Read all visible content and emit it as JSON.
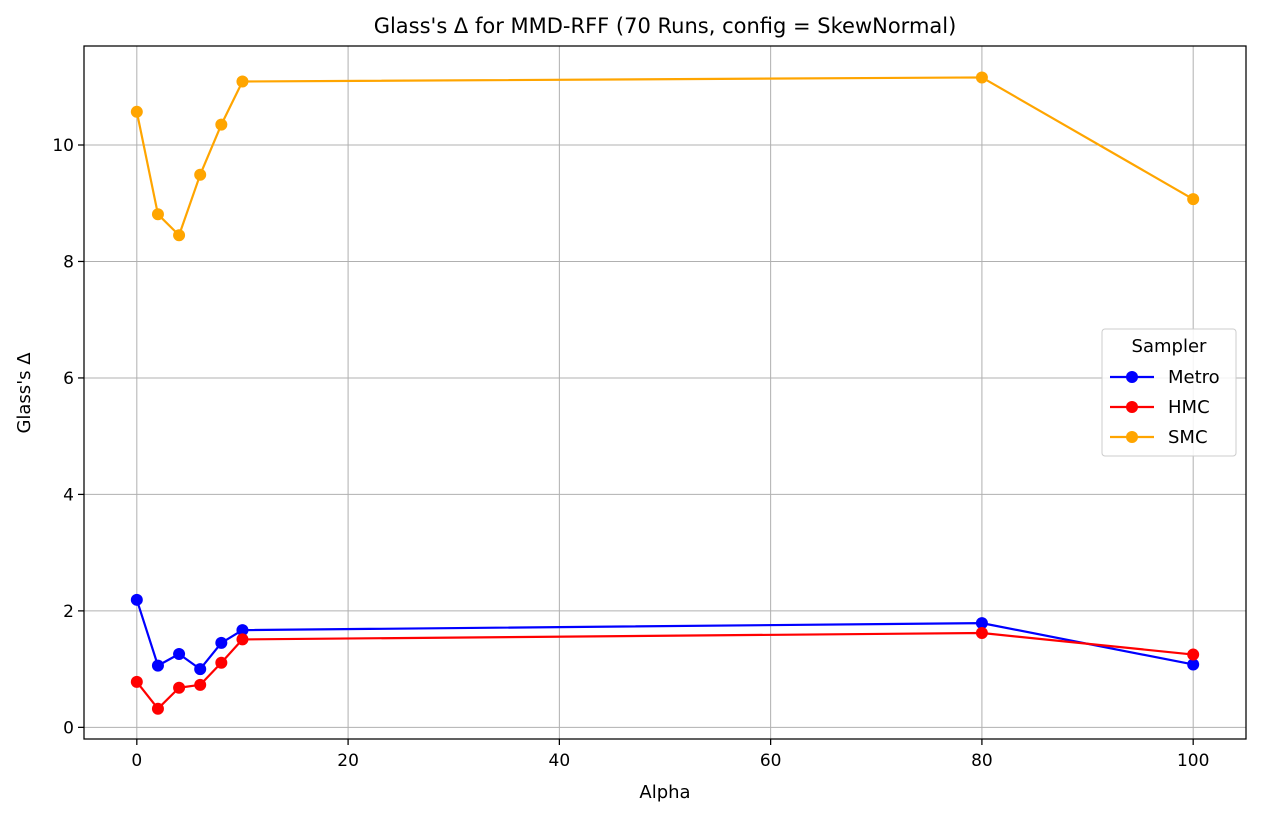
{
  "chart_data": {
    "type": "line",
    "title": "Glass's Δ for MMD-RFF (70 Runs, config = SkewNormal)",
    "xlabel": "Alpha",
    "ylabel": "Glass's Δ",
    "xlim": [
      -5,
      105
    ],
    "ylim": [
      -0.2,
      11.7
    ],
    "xticks": [
      0,
      20,
      40,
      60,
      80,
      100
    ],
    "yticks": [
      0,
      2,
      4,
      6,
      8,
      10
    ],
    "grid": true,
    "legend": {
      "title": "Sampler",
      "placement": "center-right"
    },
    "x": [
      0,
      2,
      4,
      6,
      8,
      10,
      80,
      100
    ],
    "series": [
      {
        "name": "Metro",
        "color": "#0000ff",
        "values": [
          2.19,
          1.06,
          1.26,
          1.0,
          1.45,
          1.67,
          1.79,
          1.08
        ]
      },
      {
        "name": "HMC",
        "color": "#ff0000",
        "values": [
          0.78,
          0.32,
          0.68,
          0.73,
          1.11,
          1.51,
          1.62,
          1.25
        ]
      },
      {
        "name": "SMC",
        "color": "#ffa500",
        "values": [
          10.57,
          8.81,
          8.45,
          9.49,
          10.35,
          11.09,
          11.16,
          9.07
        ]
      }
    ]
  }
}
